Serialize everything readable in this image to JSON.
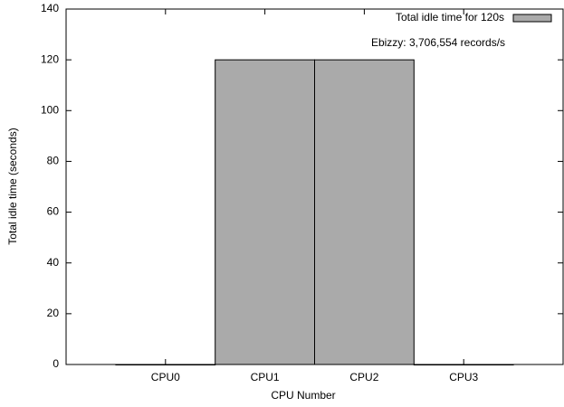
{
  "chart_data": {
    "type": "bar",
    "categories": [
      "CPU0",
      "CPU1",
      "CPU2",
      "CPU3"
    ],
    "series": [
      {
        "name": "Total idle time for 120s",
        "color": "#aaaaaa",
        "values": [
          0,
          120,
          120,
          0
        ]
      }
    ],
    "ylim": [
      0,
      140
    ],
    "yticks": [
      0,
      20,
      40,
      60,
      80,
      100,
      120,
      140
    ],
    "xlabel": "CPU Number",
    "ylabel": "Total idle time (seconds)",
    "annotation": "Ebizzy: 3,706,554 records/s",
    "legend": "top-right"
  }
}
